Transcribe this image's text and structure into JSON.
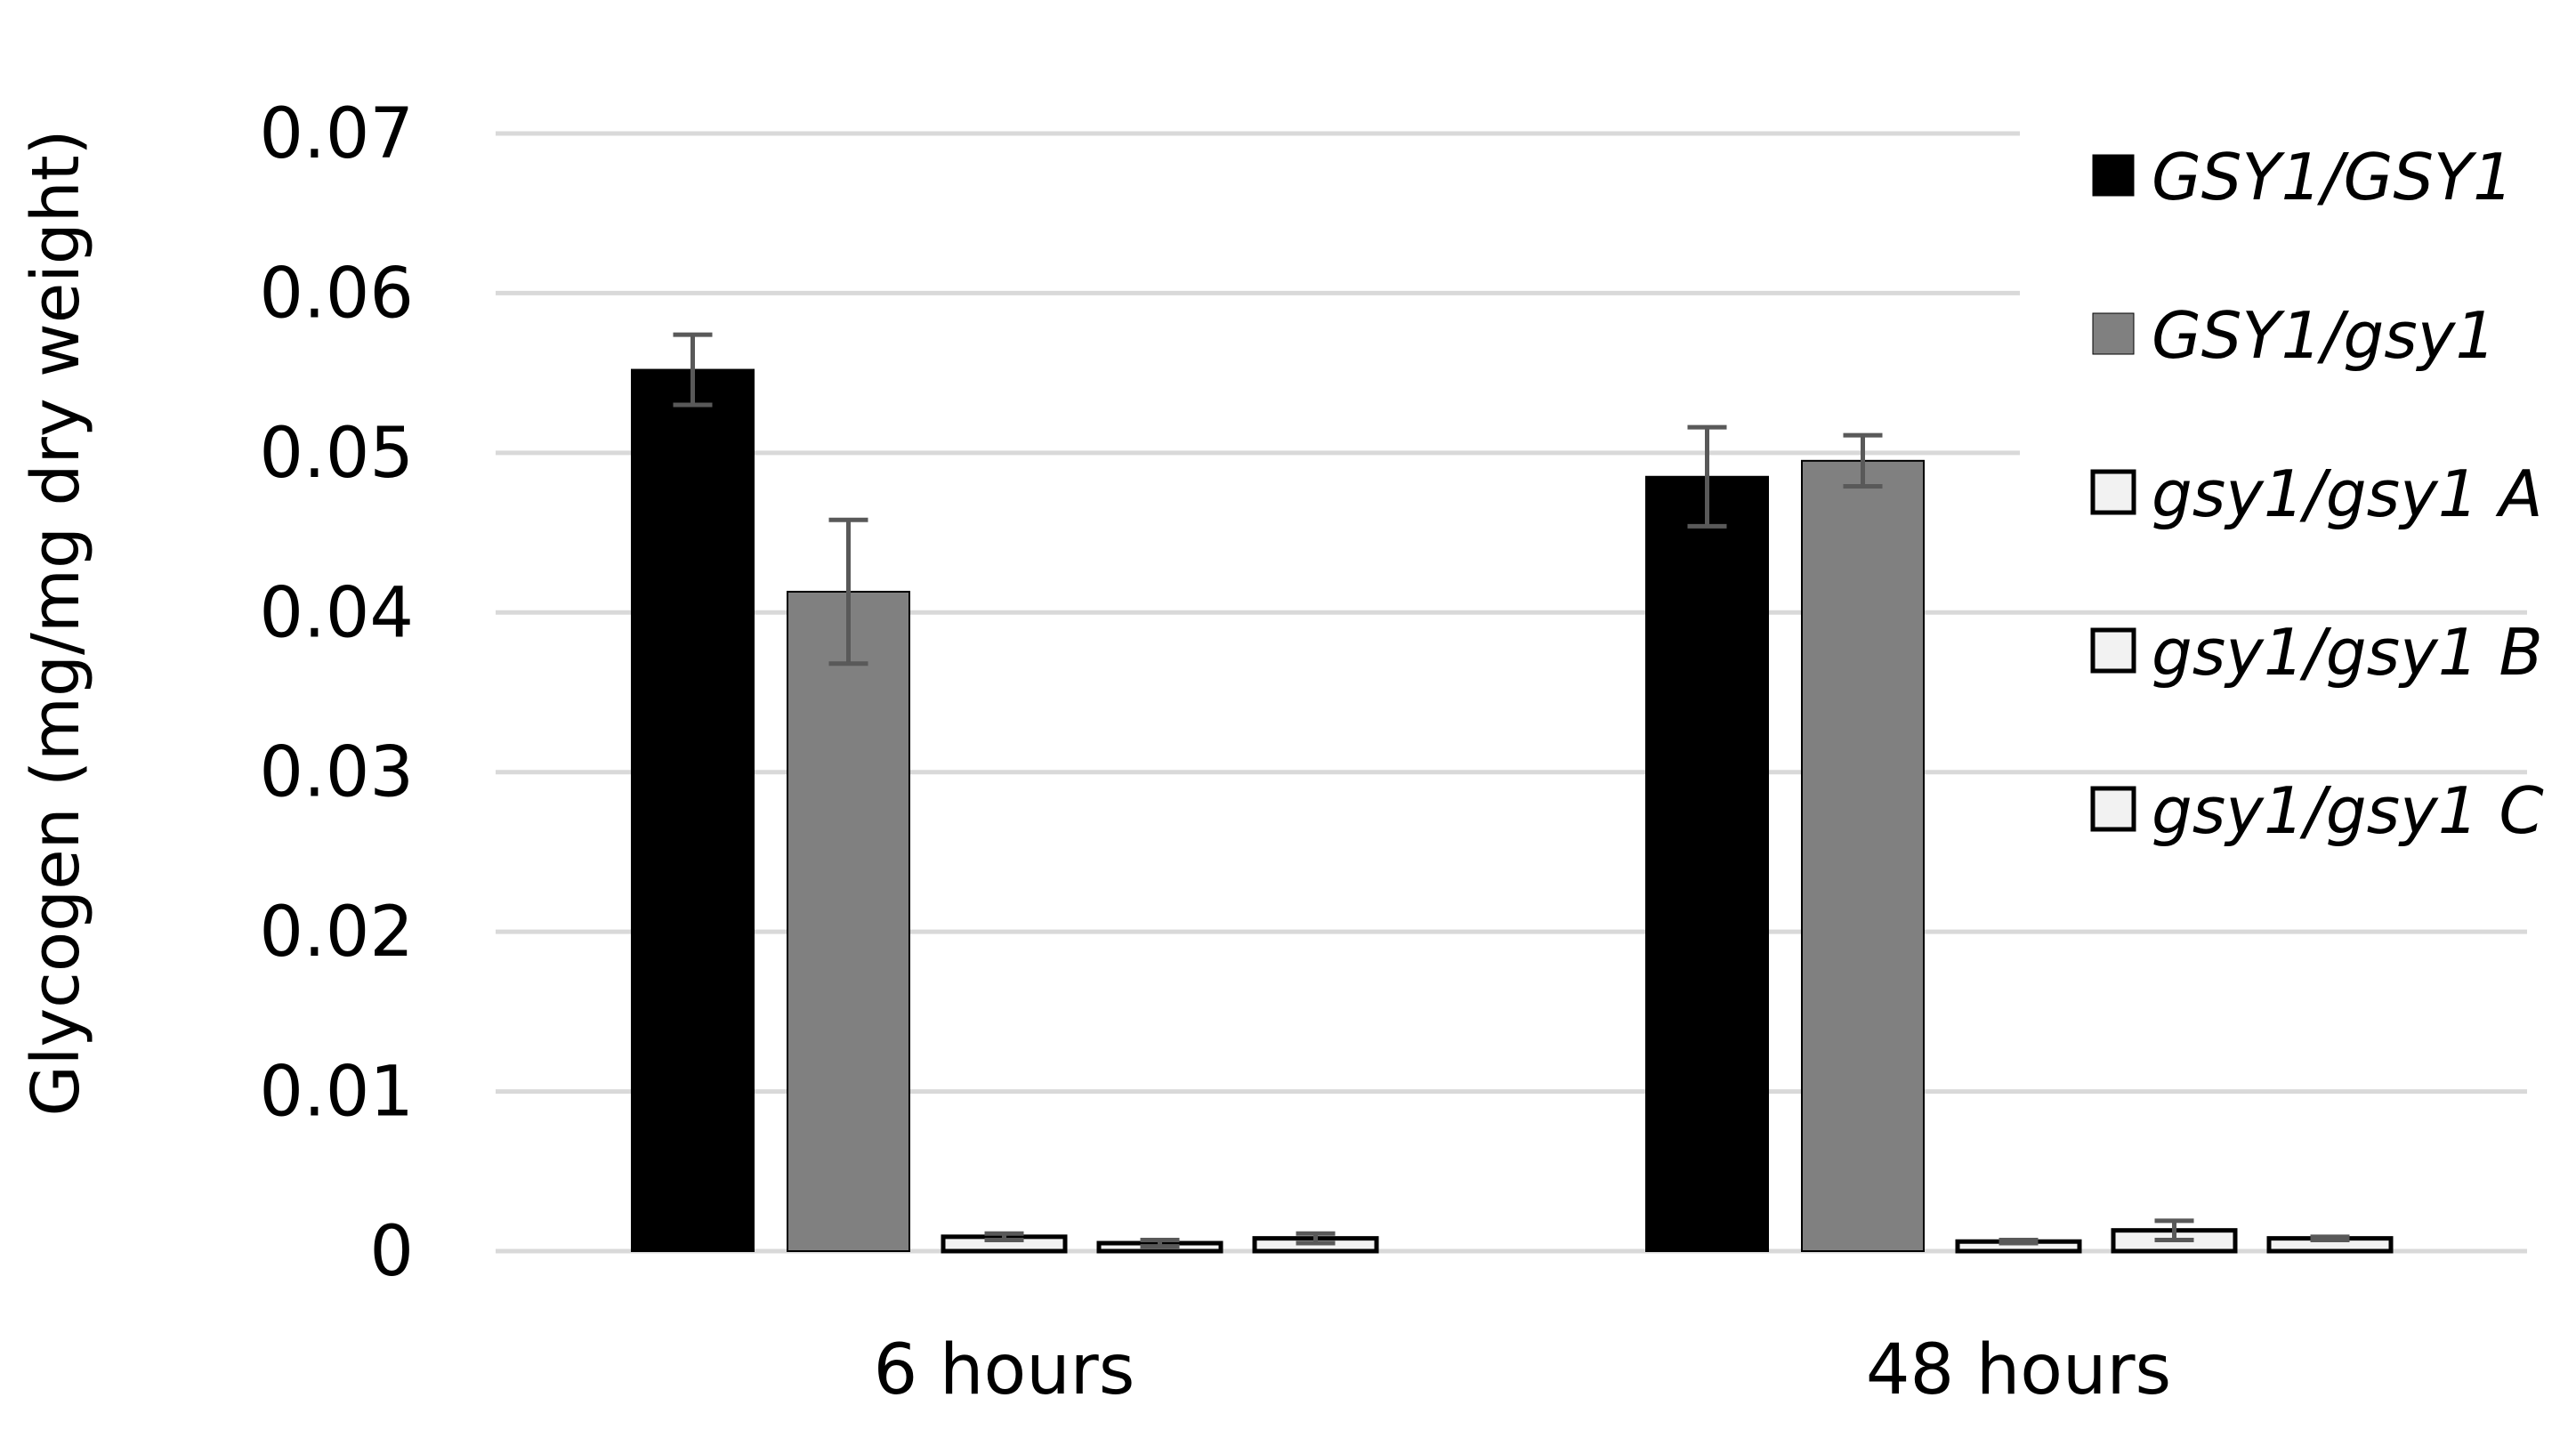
{
  "chart_data": {
    "type": "bar",
    "title": "",
    "xlabel": "",
    "ylabel": "Glycogen (mg/mg dry weight)",
    "ylim": [
      0,
      0.07
    ],
    "yticks": [
      "0",
      "0.01",
      "0.02",
      "0.03",
      "0.04",
      "0.05",
      "0.06",
      "0.07"
    ],
    "ytick_values": [
      0,
      0.01,
      0.02,
      0.03,
      0.04,
      0.05,
      0.06,
      0.07
    ],
    "grid": true,
    "legend_position": "right",
    "categories": [
      "6 hours",
      "48 hours"
    ],
    "series": [
      {
        "name": "GSY1/GSY1",
        "color": "#000000",
        "values": [
          0.0552,
          0.0485
        ],
        "errors": [
          0.0022,
          0.0031
        ]
      },
      {
        "name": "GSY1/gsy1",
        "color": "#808080",
        "values": [
          0.0413,
          0.0495
        ],
        "errors": [
          0.0045,
          0.0016
        ]
      },
      {
        "name": "gsy1/gsy1 A",
        "color": "#f2f2f2",
        "values": [
          0.0009,
          0.0006
        ],
        "errors": [
          0.0002,
          0.0001
        ]
      },
      {
        "name": "gsy1/gsy1 B",
        "color": "#f2f2f2",
        "values": [
          0.0005,
          0.0013
        ],
        "errors": [
          0.0002,
          0.0006
        ]
      },
      {
        "name": "gsy1/gsy1 C",
        "color": "#f2f2f2",
        "values": [
          0.0008,
          0.0008
        ],
        "errors": [
          0.0003,
          0.0001
        ]
      }
    ],
    "colors": {
      "grid": "#d9d9d9",
      "error_bar": "#595959",
      "bar_outline": "#000000"
    }
  }
}
